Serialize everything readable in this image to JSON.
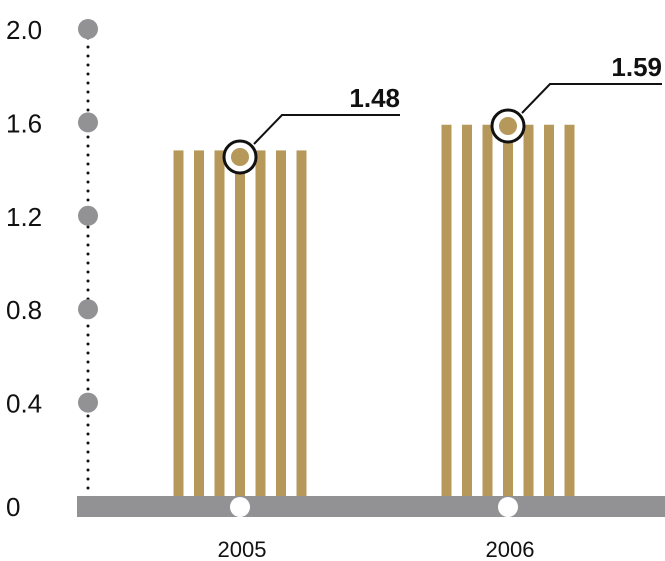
{
  "chart_data": {
    "type": "bar",
    "title": "",
    "xlabel": "",
    "ylabel": "",
    "categories": [
      "2005",
      "2006"
    ],
    "values": [
      1.48,
      1.59
    ],
    "data_labels": [
      "1.48",
      "1.59"
    ],
    "ylim": [
      0,
      2.0
    ],
    "y_ticks": [
      0,
      0.4,
      0.8,
      1.2,
      1.6,
      2.0
    ],
    "y_tick_labels": [
      "0",
      "0.4",
      "0.8",
      "1.2",
      "1.6",
      "2.0"
    ],
    "grid": false,
    "legend": "none",
    "colors": {
      "bar": "#b5985a",
      "baseline": "#929295",
      "axis_dot": "#929295",
      "marker_ring": "#111111",
      "marker_fill": "#b5985a",
      "base_dot": "#ffffff",
      "text": "#111111"
    }
  }
}
